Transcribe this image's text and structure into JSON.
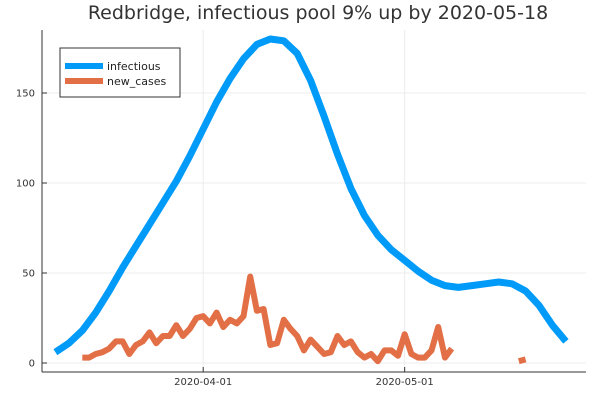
{
  "chart_data": {
    "type": "line",
    "title": "Redbridge, infectious pool 9% up by 2020-05-18",
    "xlabel": "",
    "ylabel": "",
    "x_range": [
      "2020-03-08",
      "2020-05-28"
    ],
    "ylim": [
      -5,
      185
    ],
    "y_ticks": [
      0,
      50,
      100,
      150
    ],
    "x_ticks": [
      {
        "date": "2020-04-01",
        "label": "2020-04-01"
      },
      {
        "date": "2020-05-01",
        "label": "2020-05-01"
      }
    ],
    "grid": true,
    "legend": {
      "position": "top-left"
    },
    "colors": {
      "infectious": "#009af9",
      "new_cases": "#e26f46"
    },
    "series": [
      {
        "name": "infectious",
        "x": [
          "2020-03-10",
          "2020-03-12",
          "2020-03-14",
          "2020-03-16",
          "2020-03-18",
          "2020-03-20",
          "2020-03-22",
          "2020-03-24",
          "2020-03-26",
          "2020-03-28",
          "2020-03-30",
          "2020-04-01",
          "2020-04-03",
          "2020-04-05",
          "2020-04-07",
          "2020-04-09",
          "2020-04-11",
          "2020-04-13",
          "2020-04-15",
          "2020-04-17",
          "2020-04-19",
          "2020-04-21",
          "2020-04-23",
          "2020-04-25",
          "2020-04-27",
          "2020-04-29",
          "2020-05-01",
          "2020-05-03",
          "2020-05-05",
          "2020-05-07",
          "2020-05-09",
          "2020-05-11",
          "2020-05-13",
          "2020-05-15",
          "2020-05-17",
          "2020-05-19",
          "2020-05-21",
          "2020-05-23",
          "2020-05-25"
        ],
        "values": [
          6,
          11,
          18,
          28,
          40,
          53,
          65,
          77,
          89,
          101,
          115,
          130,
          145,
          158,
          169,
          177,
          180,
          179,
          172,
          157,
          137,
          116,
          97,
          82,
          71,
          63,
          57,
          51,
          46,
          43,
          42,
          43,
          44,
          45,
          44,
          40,
          32,
          21,
          12
        ]
      },
      {
        "name": "new_cases",
        "x": [
          "2020-03-14",
          "2020-03-15",
          "2020-03-16",
          "2020-03-17",
          "2020-03-18",
          "2020-03-19",
          "2020-03-20",
          "2020-03-21",
          "2020-03-22",
          "2020-03-23",
          "2020-03-24",
          "2020-03-25",
          "2020-03-26",
          "2020-03-27",
          "2020-03-28",
          "2020-03-29",
          "2020-03-30",
          "2020-03-31",
          "2020-04-01",
          "2020-04-02",
          "2020-04-03",
          "2020-04-04",
          "2020-04-05",
          "2020-04-06",
          "2020-04-07",
          "2020-04-08",
          "2020-04-09",
          "2020-04-10",
          "2020-04-11",
          "2020-04-12",
          "2020-04-13",
          "2020-04-14",
          "2020-04-15",
          "2020-04-16",
          "2020-04-17",
          "2020-04-18",
          "2020-04-19",
          "2020-04-20",
          "2020-04-21",
          "2020-04-22",
          "2020-04-23",
          "2020-04-24",
          "2020-04-25",
          "2020-04-26",
          "2020-04-27",
          "2020-04-28",
          "2020-04-29",
          "2020-04-30",
          "2020-05-01",
          "2020-05-02",
          "2020-05-03",
          "2020-05-04",
          "2020-05-05",
          "2020-05-06",
          "2020-05-07",
          "2020-05-08",
          "2020-05-09",
          "2020-05-10",
          "2020-05-11",
          "2020-05-12",
          "2020-05-13",
          "2020-05-14",
          "2020-05-15",
          "2020-05-16",
          "2020-05-17",
          "2020-05-18",
          "2020-05-19"
        ],
        "values": [
          3,
          3,
          5,
          6,
          8,
          12,
          12,
          5,
          10,
          12,
          17,
          11,
          15,
          15,
          21,
          15,
          19,
          25,
          26,
          22,
          28,
          20,
          24,
          22,
          26,
          48,
          29,
          30,
          10,
          11,
          24,
          19,
          15,
          7,
          13,
          9,
          5,
          6,
          15,
          10,
          12,
          6,
          3,
          5,
          1,
          7,
          7,
          4,
          16,
          5,
          3,
          3,
          7,
          20,
          3,
          8,
          null,
          null,
          null,
          null,
          null,
          null,
          null,
          null,
          null,
          1,
          2
        ]
      }
    ]
  }
}
